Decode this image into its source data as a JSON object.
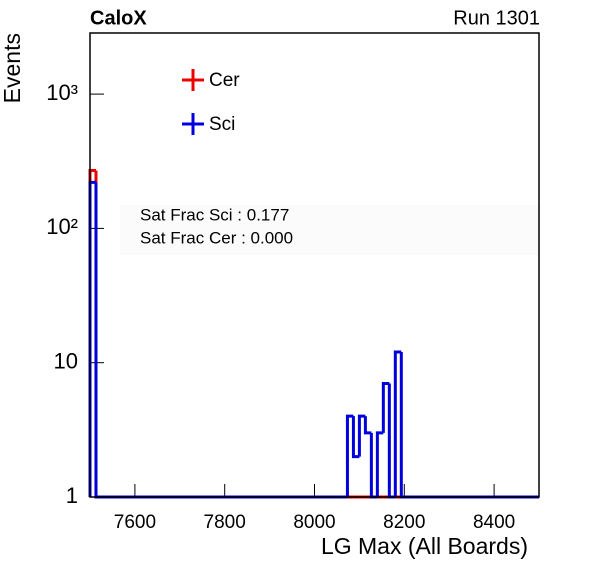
{
  "chart_data": {
    "type": "histogram",
    "title": "CaloX",
    "subtitle": "Run 1301",
    "x_label": "LG Max (All Boards)",
    "y_label": "Events",
    "annotations": [
      "Sat Frac Sci : 0.177",
      "Sat Frac Cer : 0.000"
    ],
    "bins": [
      7500,
      7513.33,
      8073.33,
      8086.67,
      8100,
      8113.33,
      8126.67,
      8140,
      8153.33,
      8166.67,
      8180,
      8193.33,
      8500
    ],
    "series": [
      {
        "name": "Cer",
        "color": "#ee0000",
        "values": [
          270,
          0,
          0,
          0,
          0,
          0,
          0,
          0,
          0,
          0,
          0,
          0
        ]
      },
      {
        "name": "Sci",
        "color": "#0000dd",
        "values": [
          220,
          0,
          4,
          2,
          4,
          3,
          0,
          3,
          7,
          0,
          12,
          0
        ]
      }
    ],
    "xlim": [
      7500,
      8500
    ],
    "xticks": [
      7600,
      7800,
      8000,
      8200,
      8400
    ],
    "ylim": [
      1,
      2850
    ],
    "log_y": true,
    "yticks": [
      1,
      10,
      {
        "value": 100,
        "label": "10²"
      },
      {
        "value": 1000,
        "label": "10³"
      }
    ],
    "legend": "top-left"
  }
}
